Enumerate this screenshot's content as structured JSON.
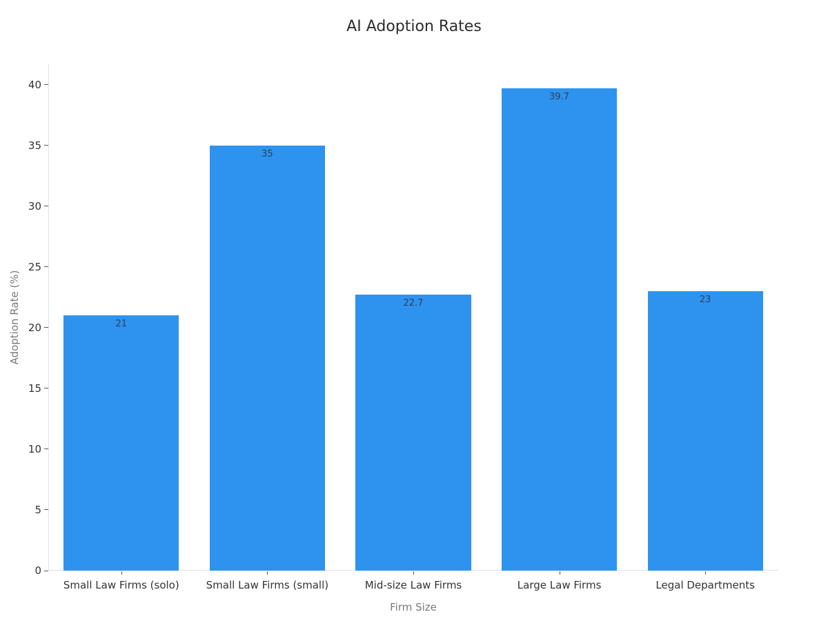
{
  "chart_data": {
    "type": "bar",
    "title": "AI Adoption Rates",
    "xlabel": "Firm Size",
    "ylabel": "Adoption Rate (%)",
    "categories": [
      "Small Law Firms (solo)",
      "Small Law Firms (small)",
      "Mid-size Law Firms",
      "Large Law Firms",
      "Legal Departments"
    ],
    "values": [
      21,
      35,
      22.7,
      39.7,
      23
    ],
    "value_labels": [
      "21",
      "35",
      "22.7",
      "39.7",
      "23"
    ],
    "yticks": [
      0,
      5,
      10,
      15,
      20,
      25,
      30,
      35,
      40
    ],
    "ylim": [
      0,
      41.7
    ],
    "grid": false,
    "legend": false,
    "bar_color": "#2E93EE",
    "value_label_color": "#2a3f5f",
    "axis_line_color": "#e2e2e2",
    "tick_mark_color": "#555555",
    "tick_label_color": "#333333",
    "axis_title_color": "#7a7a7a",
    "title_color": "#2d2d2d",
    "background_color": "#ffffff"
  }
}
